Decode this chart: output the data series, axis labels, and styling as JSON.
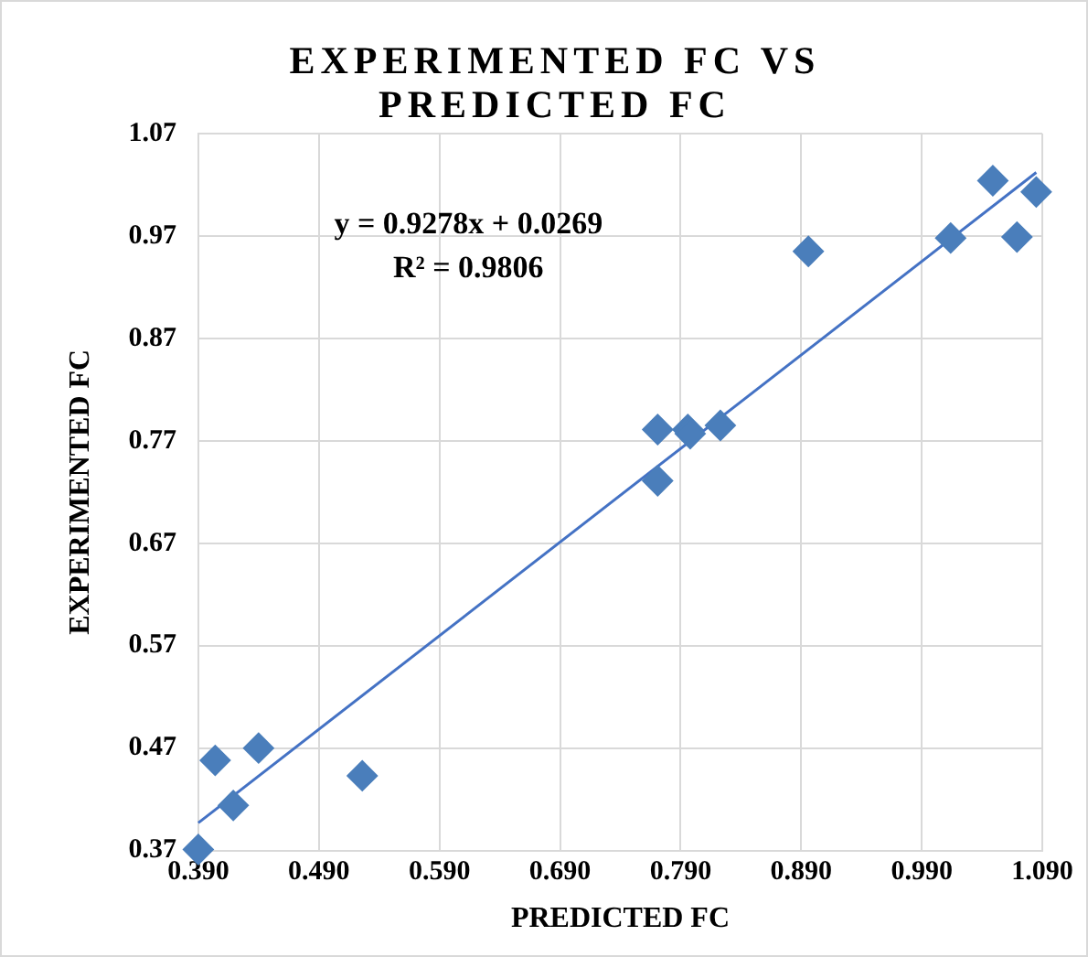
{
  "chart_data": {
    "type": "scatter",
    "title": "EXPERIMENTED FC VS PREDICTED FC",
    "xlabel": "PREDICTED FC",
    "ylabel": "EXPERIMENTED FC",
    "annotations": [
      "y = 0.9278x + 0.0269",
      "R² = 0.9806"
    ],
    "series": [
      {
        "type": "scatter",
        "color": "#4a7ebb",
        "marker": "diamond",
        "x": [
          0.39,
          0.404,
          0.44,
          0.419,
          0.526,
          0.771,
          0.771,
          0.796,
          0.798,
          0.823,
          0.896,
          1.014,
          1.049,
          1.069,
          1.085
        ],
        "values": [
          0.371,
          0.458,
          0.47,
          0.414,
          0.443,
          0.781,
          0.731,
          0.781,
          0.777,
          0.785,
          0.955,
          0.968,
          1.024,
          0.969,
          1.013
        ]
      },
      {
        "type": "line",
        "color": "#4472c4",
        "marker": "none",
        "line_style": "solid",
        "x": [
          0.39,
          1.085
        ],
        "values": [
          0.397,
          1.032
        ]
      }
    ],
    "xlim": [
      0.39,
      1.09
    ],
    "xticks": [
      {
        "value": 0.39,
        "label": "0.390"
      },
      {
        "value": 0.49,
        "label": "0.490"
      },
      {
        "value": 0.59,
        "label": "0.590"
      },
      {
        "value": 0.69,
        "label": "0.690"
      },
      {
        "value": 0.79,
        "label": "0.790"
      },
      {
        "value": 0.89,
        "label": "0.890"
      },
      {
        "value": 0.99,
        "label": "0.990"
      },
      {
        "value": 1.09,
        "label": "1.090"
      }
    ],
    "ylim": [
      0.37,
      1.07
    ],
    "yticks": [
      0.37,
      0.47,
      0.57,
      0.67,
      0.77,
      0.87,
      0.97,
      1.07
    ],
    "grid": true,
    "legend": false
  }
}
